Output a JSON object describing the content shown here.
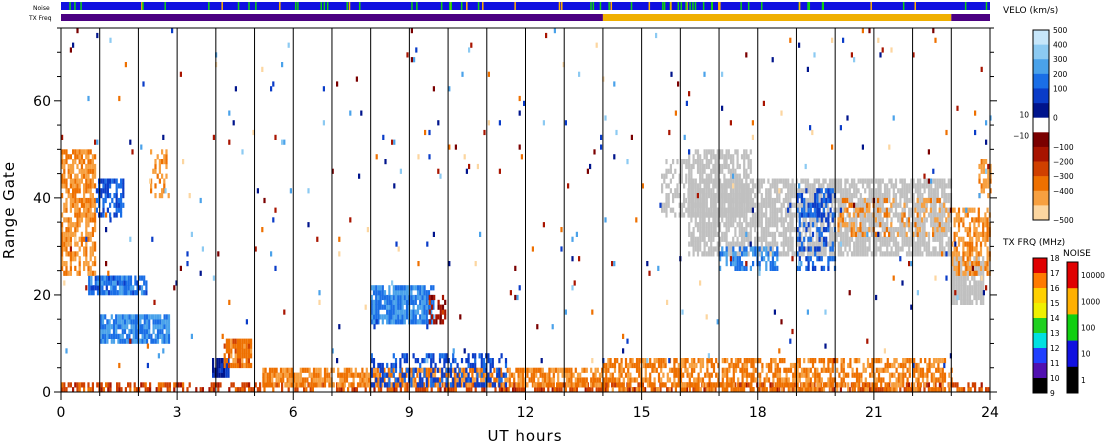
{
  "chart_data": {
    "type": "heatmap",
    "xlabel": "UT hours",
    "ylabel": "Range Gate",
    "x_ticks": [
      0,
      3,
      6,
      9,
      12,
      15,
      18,
      21,
      24
    ],
    "y_ticks": [
      0,
      20,
      40,
      60
    ],
    "xlim": [
      0,
      24
    ],
    "ylim": [
      0,
      75
    ],
    "grid": "vertical lines at each hour",
    "top_strips": {
      "noise_label": "Noise",
      "txfreq_label": "TX Freq",
      "noise_color": "#1010e0",
      "txfreq_segments": [
        {
          "from": 0,
          "to": 14,
          "color": "#4b0082"
        },
        {
          "from": 14,
          "to": 23,
          "color": "#f0b000"
        },
        {
          "from": 23,
          "to": 24,
          "color": "#4b0082"
        }
      ]
    },
    "velocity_colorbar": {
      "title": "VELO (km/s)",
      "ticks": [
        "500",
        "400",
        "300",
        "200",
        "100",
        "10",
        "0",
        "−10",
        "−100",
        "−200",
        "−300",
        "−400",
        "−500"
      ],
      "pos_colors": [
        "#c6e6fa",
        "#8ccaf2",
        "#4aa2ea",
        "#1a6ee6",
        "#0a3cc8",
        "#00148c"
      ],
      "neg_colors": [
        "#7a0000",
        "#a81400",
        "#d04000",
        "#ee7000",
        "#f7a040",
        "#fcd6a0"
      ]
    },
    "txfreq_colorbar": {
      "title": "TX FRQ (MHz)",
      "ticks": [
        "18",
        "17",
        "16",
        "15",
        "14",
        "13",
        "12",
        "11",
        "10",
        "9"
      ],
      "colors": [
        "#e00000",
        "#ff7a00",
        "#ffd000",
        "#f0f000",
        "#20d020",
        "#00e0e0",
        "#2040ff",
        "#5010b0",
        "#000000"
      ]
    },
    "noise_colorbar": {
      "title": "NOISE",
      "ticks": [
        "10000",
        "1000",
        "100",
        "10",
        "1"
      ],
      "colors": [
        "#e00000",
        "#ffb000",
        "#10d010",
        "#1010e0",
        "#000000"
      ]
    },
    "data_regions": [
      {
        "x0": 0.0,
        "x1": 24.0,
        "y0": 0,
        "y1": 2,
        "v": -250,
        "d": 0.55
      },
      {
        "x0": 5.2,
        "x1": 14.0,
        "y0": 1,
        "y1": 5,
        "v": -400,
        "d": 0.75
      },
      {
        "x0": 14.0,
        "x1": 23.0,
        "y0": 0,
        "y1": 7,
        "v": -380,
        "d": 0.6
      },
      {
        "x0": 8.0,
        "x1": 11.5,
        "y0": 1,
        "y1": 8,
        "v": 180,
        "d": 0.45
      },
      {
        "x0": 3.9,
        "x1": 4.3,
        "y0": 3,
        "y1": 7,
        "v": 100,
        "d": 0.9
      },
      {
        "x0": 4.2,
        "x1": 4.9,
        "y0": 5,
        "y1": 11,
        "v": -350,
        "d": 0.85
      },
      {
        "x0": 1.0,
        "x1": 2.8,
        "y0": 10,
        "y1": 16,
        "v": 300,
        "d": 0.9
      },
      {
        "x0": 0.7,
        "x1": 2.2,
        "y0": 20,
        "y1": 24,
        "v": 260,
        "d": 0.8
      },
      {
        "x0": 0.0,
        "x1": 0.9,
        "y0": 24,
        "y1": 50,
        "v": -420,
        "d": 0.7
      },
      {
        "x0": 0.9,
        "x1": 1.6,
        "y0": 36,
        "y1": 44,
        "v": 220,
        "d": 0.6
      },
      {
        "x0": 8.0,
        "x1": 9.6,
        "y0": 14,
        "y1": 22,
        "v": 300,
        "d": 0.85
      },
      {
        "x0": 9.5,
        "x1": 9.9,
        "y0": 14,
        "y1": 20,
        "v": -150,
        "d": 0.5
      },
      {
        "x0": 16.2,
        "x1": 23.0,
        "y0": 28,
        "y1": 44,
        "v": 0,
        "d": 0.75
      },
      {
        "x0": 16.2,
        "x1": 17.8,
        "y0": 36,
        "y1": 50,
        "v": 0,
        "d": 0.7
      },
      {
        "x0": 17.0,
        "x1": 18.5,
        "y0": 25,
        "y1": 30,
        "v": 300,
        "d": 0.55
      },
      {
        "x0": 19.0,
        "x1": 20.0,
        "y0": 25,
        "y1": 42,
        "v": 200,
        "d": 0.4
      },
      {
        "x0": 20.0,
        "x1": 23.0,
        "y0": 32,
        "y1": 40,
        "v": -420,
        "d": 0.25
      },
      {
        "x0": 23.0,
        "x1": 23.8,
        "y0": 18,
        "y1": 28,
        "v": 0,
        "d": 0.85
      },
      {
        "x0": 23.0,
        "x1": 24.0,
        "y0": 24,
        "y1": 38,
        "v": -420,
        "d": 0.55
      },
      {
        "x0": 23.7,
        "x1": 24.0,
        "y0": 40,
        "y1": 48,
        "v": -420,
        "d": 0.6
      },
      {
        "x0": 2.3,
        "x1": 2.8,
        "y0": 40,
        "y1": 50,
        "v": -420,
        "d": 0.35
      },
      {
        "x0": 15.5,
        "x1": 16.2,
        "y0": 36,
        "y1": 48,
        "v": 0,
        "d": 0.45
      },
      {
        "x0": 0.0,
        "x1": 24.0,
        "y0": 5,
        "y1": 75,
        "v": "rand",
        "d": 0.012
      }
    ]
  }
}
